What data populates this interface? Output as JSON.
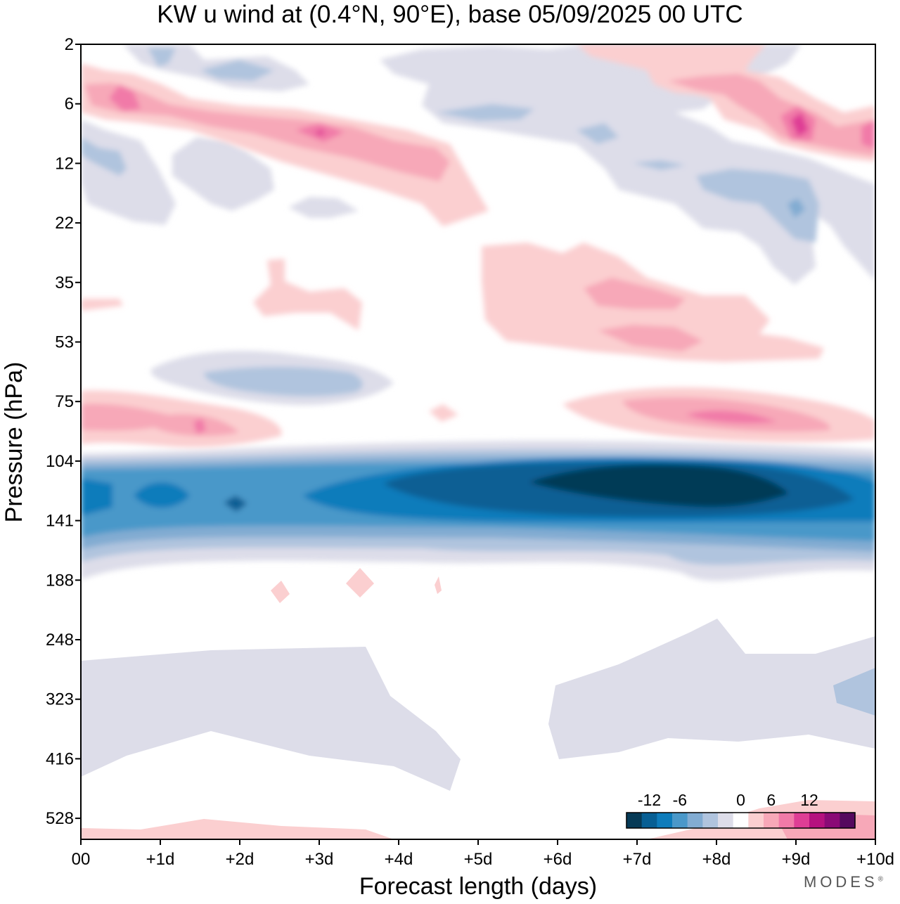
{
  "chart_data": {
    "type": "heatmap",
    "title": "KW u wind at (0.4°N, 90°E),  base 05/09/2025  00 UTC",
    "xlabel": "Forecast length (days)",
    "ylabel": "Pressure (hPa)",
    "x_ticks": [
      "00",
      "+1d",
      "+2d",
      "+3d",
      "+4d",
      "+5d",
      "+6d",
      "+7d",
      "+8d",
      "+9d",
      "+10d"
    ],
    "y_ticks": [
      "2",
      "6",
      "12",
      "22",
      "35",
      "53",
      "75",
      "104",
      "141",
      "188",
      "248",
      "323",
      "416",
      "528"
    ],
    "xlim": [
      0,
      10
    ],
    "colorbar": {
      "labels": [
        "-12",
        "-6",
        "0",
        "6",
        "12"
      ],
      "levels": [
        -14,
        -12,
        -10,
        -8,
        -6,
        -4,
        -2,
        2,
        4,
        6,
        8,
        10,
        12,
        14
      ],
      "colors": [
        "#063a56",
        "#075f94",
        "#0e7cbb",
        "#4a98c9",
        "#82acd2",
        "#b0c4de",
        "#dddde9",
        "#ffffff",
        "#fbcfd0",
        "#f7a8b8",
        "#f17aa8",
        "#df3e95",
        "#b5117f",
        "#8a0a76",
        "#55095e"
      ],
      "position": "bottom-right"
    },
    "features": [
      {
        "name": "easterly jet core",
        "pressure_hPa": 120,
        "x_range_days": [
          0,
          10
        ],
        "min_value": -14
      },
      {
        "name": "westerly layer",
        "pressure_hPa": 85,
        "x_range_days": [
          0,
          2.5
        ],
        "max_value": 8
      },
      {
        "name": "westerly layer",
        "pressure_hPa": 85,
        "x_range_days": [
          6,
          10
        ],
        "max_value": 8
      },
      {
        "name": "upper westerly band",
        "pressure_hPa": 8,
        "x_range_days": [
          0,
          5
        ],
        "max_value": 8
      },
      {
        "name": "upper westerly band",
        "pressure_hPa": 8,
        "x_range_days": [
          8,
          10
        ],
        "max_value": 10
      },
      {
        "name": "weak easterlies",
        "pressure_hPa": 320,
        "x_range_days": [
          0,
          10
        ],
        "min_value": -4
      }
    ],
    "brand": "MODES"
  }
}
